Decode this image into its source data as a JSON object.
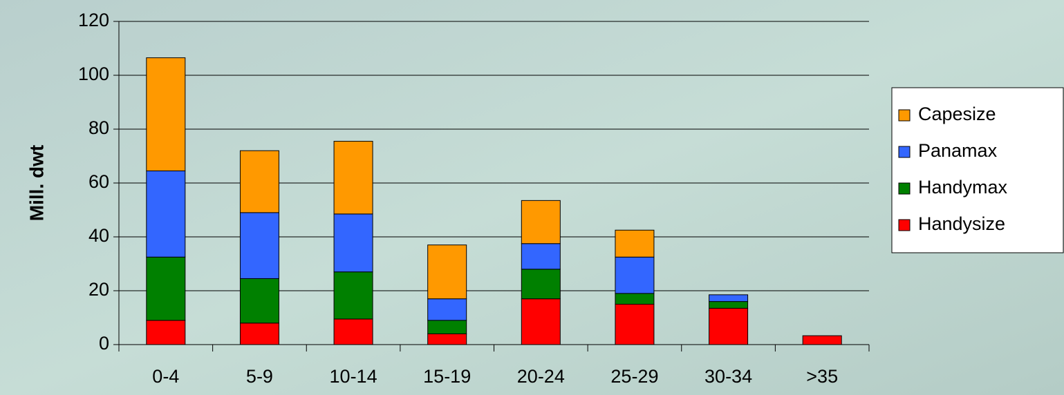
{
  "chart_data": {
    "type": "stacked_bar",
    "y_label": "Mill. dwt",
    "categories": [
      "0-4",
      "5-9",
      "10-14",
      "15-19",
      "20-24",
      "25-29",
      "30-34",
      ">35"
    ],
    "series": [
      {
        "name": "Handysize",
        "color": "#ff0000",
        "values": [
          9,
          8,
          9.5,
          4,
          17,
          15,
          13.5,
          3.3
        ]
      },
      {
        "name": "Handymax",
        "color": "#008000",
        "values": [
          23.5,
          16.5,
          17.5,
          5,
          11,
          4,
          2.5,
          0
        ]
      },
      {
        "name": "Panamax",
        "color": "#3366ff",
        "values": [
          32,
          24.5,
          21.5,
          8,
          9.5,
          13.5,
          2.5,
          0
        ]
      },
      {
        "name": "Capesize",
        "color": "#ff9900",
        "values": [
          42,
          23,
          27,
          20,
          16,
          10,
          0,
          0
        ]
      }
    ],
    "ylim": [
      0,
      120
    ],
    "yticks": [
      0,
      20,
      40,
      60,
      80,
      100,
      120
    ],
    "grid": true,
    "legend": "right"
  }
}
